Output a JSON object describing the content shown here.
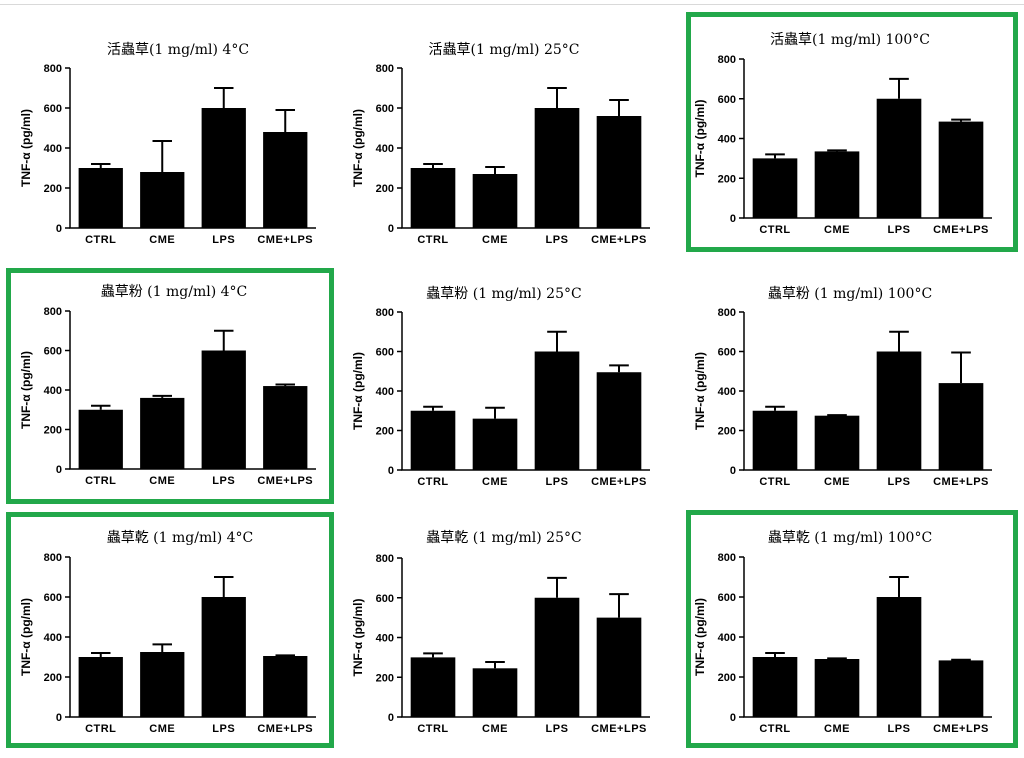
{
  "highlight_color": "#22a84a",
  "bar_color": "#000000",
  "chart_data": [
    {
      "type": "bar",
      "title": "活蟲草(1 mg/ml) 4°C",
      "ylabel": "TNF-α (pg/ml)",
      "categories": [
        "CTRL",
        "CME",
        "LPS",
        "CME+LPS"
      ],
      "values": [
        300,
        280,
        600,
        480
      ],
      "errors": [
        20,
        155,
        100,
        110
      ],
      "ylim": [
        0,
        800
      ],
      "yticks": [
        0,
        200,
        400,
        600,
        800
      ],
      "highlighted": false
    },
    {
      "type": "bar",
      "title": "活蟲草(1 mg/ml) 25°C",
      "ylabel": "TNF-α (pg/ml)",
      "categories": [
        "CTRL",
        "CME",
        "LPS",
        "CME+LPS"
      ],
      "values": [
        300,
        270,
        600,
        560
      ],
      "errors": [
        20,
        35,
        100,
        80
      ],
      "ylim": [
        0,
        800
      ],
      "yticks": [
        0,
        200,
        400,
        600,
        800
      ],
      "highlighted": false
    },
    {
      "type": "bar",
      "title": "活蟲草(1 mg/ml) 100°C",
      "ylabel": "TNF-α (pg/ml)",
      "categories": [
        "CTRL",
        "CME",
        "LPS",
        "CME+LPS"
      ],
      "values": [
        300,
        335,
        600,
        485
      ],
      "errors": [
        20,
        5,
        100,
        10
      ],
      "ylim": [
        0,
        800
      ],
      "yticks": [
        0,
        200,
        400,
        600,
        800
      ],
      "highlighted": true
    },
    {
      "type": "bar",
      "title": "蟲草粉 (1 mg/ml) 4°C",
      "ylabel": "TNF-α (pg/ml)",
      "categories": [
        "CTRL",
        "CME",
        "LPS",
        "CME+LPS"
      ],
      "values": [
        300,
        360,
        600,
        420
      ],
      "errors": [
        20,
        10,
        100,
        8
      ],
      "ylim": [
        0,
        800
      ],
      "yticks": [
        0,
        200,
        400,
        600,
        800
      ],
      "highlighted": true
    },
    {
      "type": "bar",
      "title": "蟲草粉 (1 mg/ml) 25°C",
      "ylabel": "TNF-α (pg/ml)",
      "categories": [
        "CTRL",
        "CME",
        "LPS",
        "CME+LPS"
      ],
      "values": [
        300,
        260,
        600,
        495
      ],
      "errors": [
        20,
        55,
        100,
        35
      ],
      "ylim": [
        0,
        800
      ],
      "yticks": [
        0,
        200,
        400,
        600,
        800
      ],
      "highlighted": false
    },
    {
      "type": "bar",
      "title": "蟲草粉 (1 mg/ml) 100°C",
      "ylabel": "TNF-α (pg/ml)",
      "categories": [
        "CTRL",
        "CME",
        "LPS",
        "CME+LPS"
      ],
      "values": [
        300,
        275,
        600,
        440
      ],
      "errors": [
        20,
        3,
        100,
        155
      ],
      "ylim": [
        0,
        800
      ],
      "yticks": [
        0,
        200,
        400,
        600,
        800
      ],
      "highlighted": false
    },
    {
      "type": "bar",
      "title": "蟲草乾 (1 mg/ml) 4°C",
      "ylabel": "TNF-α (pg/ml)",
      "categories": [
        "CTRL",
        "CME",
        "LPS",
        "CME+LPS"
      ],
      "values": [
        300,
        325,
        600,
        305
      ],
      "errors": [
        20,
        38,
        100,
        3
      ],
      "ylim": [
        0,
        800
      ],
      "yticks": [
        0,
        200,
        400,
        600,
        800
      ],
      "highlighted": true
    },
    {
      "type": "bar",
      "title": "蟲草乾 (1 mg/ml) 25°C",
      "ylabel": "TNF-α (pg/ml)",
      "categories": [
        "CTRL",
        "CME",
        "LPS",
        "CME+LPS"
      ],
      "values": [
        300,
        245,
        600,
        500
      ],
      "errors": [
        20,
        32,
        100,
        118
      ],
      "ylim": [
        0,
        800
      ],
      "yticks": [
        0,
        200,
        400,
        600,
        800
      ],
      "highlighted": false
    },
    {
      "type": "bar",
      "title": "蟲草乾 (1 mg/ml) 100°C",
      "ylabel": "TNF-α (pg/ml)",
      "categories": [
        "CTRL",
        "CME",
        "LPS",
        "CME+LPS"
      ],
      "values": [
        300,
        290,
        600,
        283
      ],
      "errors": [
        20,
        3,
        100,
        3
      ],
      "ylim": [
        0,
        800
      ],
      "yticks": [
        0,
        200,
        400,
        600,
        800
      ],
      "highlighted": true
    }
  ]
}
